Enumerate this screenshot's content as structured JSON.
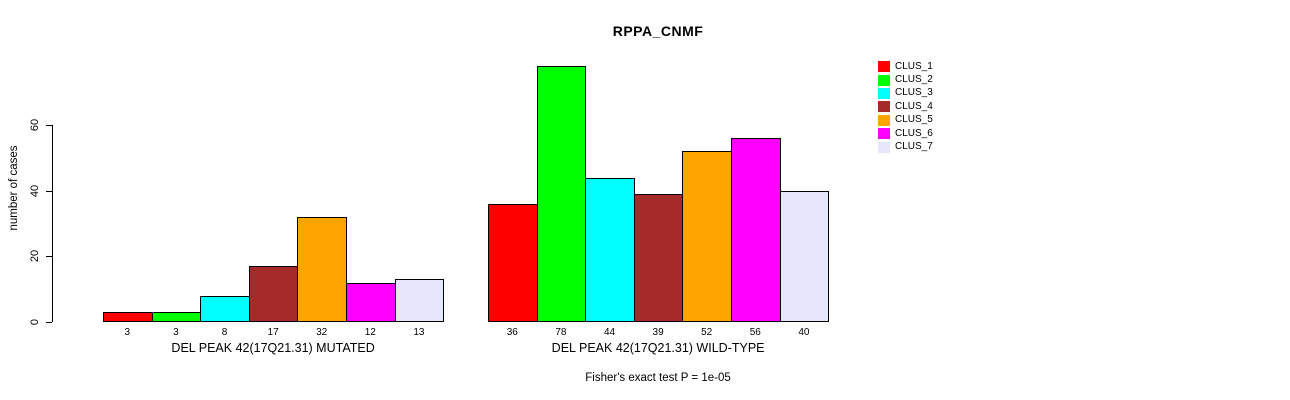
{
  "chart_data": {
    "type": "bar",
    "title": "RPPA_CNMF",
    "ylabel": "number of cases",
    "xlabel": "",
    "footnote": "Fisher's exact test P = 1e-05",
    "ylim": [
      0,
      60
    ],
    "yticks": [
      0,
      20,
      40,
      60
    ],
    "grid": false,
    "bar_value_labels_shown": true,
    "categories": [
      "CLUS_1",
      "CLUS_2",
      "CLUS_3",
      "CLUS_4",
      "CLUS_5",
      "CLUS_6",
      "CLUS_7"
    ],
    "series_colors": [
      "#FF0000",
      "#00FF00",
      "#00FFFF",
      "#A52A2A",
      "#FFA500",
      "#FF00FF",
      "#E6E6FA"
    ],
    "groups": [
      {
        "label": "DEL PEAK 42(17Q21.31) MUTATED",
        "values": [
          3,
          3,
          8,
          17,
          32,
          12,
          13
        ]
      },
      {
        "label": "DEL PEAK 42(17Q21.31) WILD-TYPE",
        "values": [
          36,
          78,
          44,
          39,
          52,
          56,
          40
        ]
      }
    ],
    "legend": {
      "position": "right",
      "entries": [
        {
          "label": "CLUS_1",
          "color": "#FF0000"
        },
        {
          "label": "CLUS_2",
          "color": "#00FF00"
        },
        {
          "label": "CLUS_3",
          "color": "#00FFFF"
        },
        {
          "label": "CLUS_4",
          "color": "#A52A2A"
        },
        {
          "label": "CLUS_5",
          "color": "#FFA500"
        },
        {
          "label": "CLUS_6",
          "color": "#FF00FF"
        },
        {
          "label": "CLUS_7",
          "color": "#E6E6FA"
        }
      ]
    }
  }
}
